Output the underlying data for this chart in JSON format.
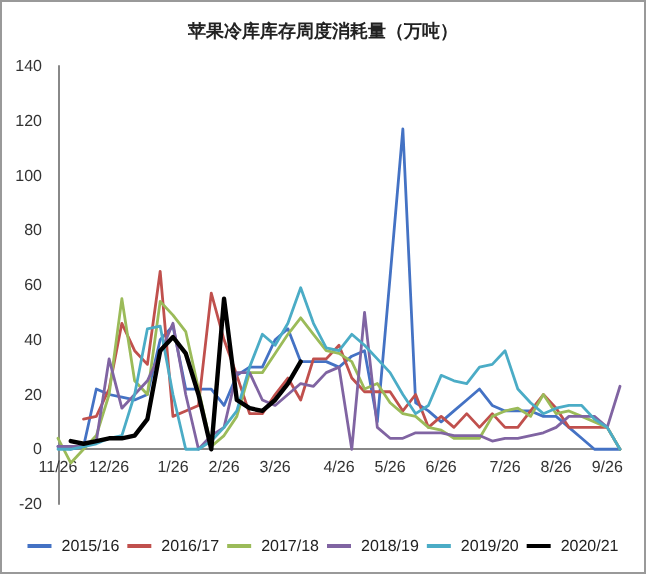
{
  "chart_data": {
    "type": "line",
    "title": "苹果冷库库存周度消耗量（万吨）",
    "categories": [
      "11/26",
      null,
      null,
      null,
      "12/26",
      null,
      null,
      null,
      null,
      "1/26",
      null,
      null,
      null,
      "2/26",
      null,
      null,
      null,
      "3/26",
      null,
      null,
      null,
      null,
      "4/26",
      null,
      null,
      null,
      "5/26",
      null,
      null,
      null,
      "6/26",
      null,
      null,
      null,
      null,
      "7/26",
      null,
      null,
      null,
      "8/26",
      null,
      null,
      null,
      "9/26",
      null
    ],
    "series": [
      {
        "name": "2015/16",
        "color": "#4472c4",
        "values": [
          1,
          0,
          1,
          22,
          20,
          19,
          18,
          20,
          40,
          45,
          22,
          22,
          22,
          16,
          27,
          30,
          30,
          40,
          44,
          32,
          32,
          32,
          30,
          34,
          36,
          10,
          63,
          117,
          17,
          14,
          10,
          14,
          18,
          22,
          16,
          14,
          14,
          14,
          12,
          12,
          8,
          4,
          0,
          0,
          0
        ]
      },
      {
        "name": "2016/17",
        "color": "#c0504d",
        "values": [
          null,
          null,
          11,
          12,
          22,
          46,
          36,
          31,
          65,
          12,
          14,
          16,
          57,
          40,
          27,
          13,
          13,
          20,
          26,
          18,
          33,
          33,
          38,
          26,
          21,
          21,
          21,
          14,
          20,
          8,
          12,
          8,
          13,
          8,
          13,
          8,
          8,
          14,
          20,
          15,
          8,
          8,
          8,
          8,
          0
        ]
      },
      {
        "name": "2017/18",
        "color": "#9bbb59",
        "values": [
          4,
          -5,
          0,
          5,
          20,
          55,
          25,
          20,
          54,
          49,
          43,
          22,
          1,
          5,
          12,
          28,
          28,
          35,
          42,
          48,
          42,
          36,
          35,
          32,
          22,
          24,
          17,
          13,
          12,
          8,
          7,
          4,
          4,
          4,
          12,
          14,
          15,
          12,
          20,
          13,
          14,
          12,
          10,
          8,
          0
        ]
      },
      {
        "name": "2018/19",
        "color": "#8064a2",
        "values": [
          1,
          1,
          1,
          3,
          33,
          15,
          20,
          25,
          35,
          46,
          20,
          0,
          5,
          8,
          28,
          28,
          18,
          16,
          20,
          24,
          23,
          28,
          30,
          0,
          50,
          8,
          4,
          4,
          6,
          6,
          6,
          5,
          5,
          5,
          3,
          4,
          4,
          5,
          6,
          8,
          12,
          12,
          12,
          8,
          23
        ]
      },
      {
        "name": "2019/20",
        "color": "#4bacc6",
        "values": [
          0,
          0,
          1,
          2,
          4,
          5,
          20,
          44,
          45,
          20,
          0,
          0,
          3,
          8,
          14,
          30,
          42,
          38,
          46,
          59,
          46,
          37,
          36,
          42,
          38,
          33,
          28,
          20,
          13,
          16,
          27,
          25,
          24,
          30,
          31,
          36,
          22,
          17,
          13,
          15,
          16,
          16,
          11,
          8,
          0
        ]
      },
      {
        "name": "2020/21",
        "color": "#000000",
        "values": [
          null,
          3,
          2,
          3,
          4,
          4,
          5,
          11,
          36,
          41,
          35,
          20,
          0,
          55,
          18,
          15,
          14,
          18,
          24,
          32,
          null,
          null,
          null,
          null,
          null,
          null,
          null,
          null,
          null,
          null,
          null,
          null,
          null,
          null,
          null,
          null,
          null,
          null,
          null,
          null,
          null,
          null,
          null,
          null,
          null
        ]
      }
    ],
    "ylim": [
      -20,
      140
    ],
    "yticks": [
      -20,
      0,
      20,
      40,
      60,
      80,
      100,
      120,
      140
    ],
    "grid": false,
    "legend": "bottom",
    "marker": "none",
    "line_style": "solid"
  }
}
